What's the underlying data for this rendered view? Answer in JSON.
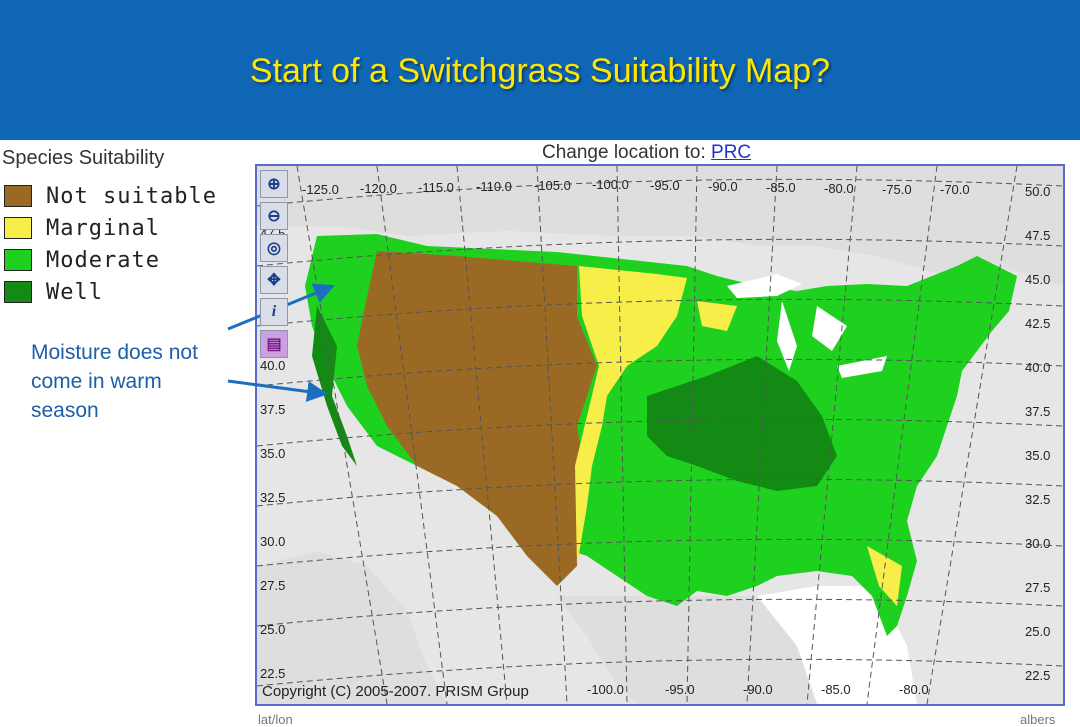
{
  "header": {
    "title": "Start of a Switchgrass Suitability Map?"
  },
  "legend": {
    "title": "Species Suitability",
    "items": [
      {
        "label": "Not suitable",
        "color": "#9a6a25"
      },
      {
        "label": "Marginal",
        "color": "#f7ee4a"
      },
      {
        "label": "Moderate",
        "color": "#1fd11f"
      },
      {
        "label": "Well",
        "color": "#138a13"
      }
    ]
  },
  "annotation": {
    "text": "Moisture does not come in warm season",
    "arrow_color": "#1c6fbf"
  },
  "map": {
    "change_location_label": "Change location to:",
    "change_location_link": "PRC",
    "copyright": "Copyright (C) 2005-2007. PRISM Group",
    "longitude_labels_top": [
      "-125.0",
      "-120.0",
      "-115.0",
      "-110.0",
      "-105.0",
      "-100.0",
      "-95.0",
      "-90.0",
      "-85.0",
      "-80.0",
      "-75.0",
      "-70.0"
    ],
    "longitude_labels_bottom": [
      "-100.0",
      "-95.0",
      "-90.0",
      "-85.0",
      "-80.0"
    ],
    "latitude_labels_left": [
      "47.5",
      "45.0",
      "42.5",
      "40.0",
      "37.5",
      "35.0",
      "32.5",
      "30.0",
      "27.5",
      "25.0",
      "22.5"
    ],
    "latitude_labels_right": [
      "50.0",
      "47.5",
      "45.0",
      "42.5",
      "40.0",
      "37.5",
      "35.0",
      "32.5",
      "30.0",
      "27.5",
      "25.0",
      "22.5"
    ],
    "tools": [
      "zoom-in-icon",
      "zoom-out-icon",
      "zoom-full-icon",
      "pan-icon",
      "info-icon",
      "legend-book-icon"
    ],
    "bottom_left_label": "lat/lon",
    "bottom_right_label": "albers"
  }
}
